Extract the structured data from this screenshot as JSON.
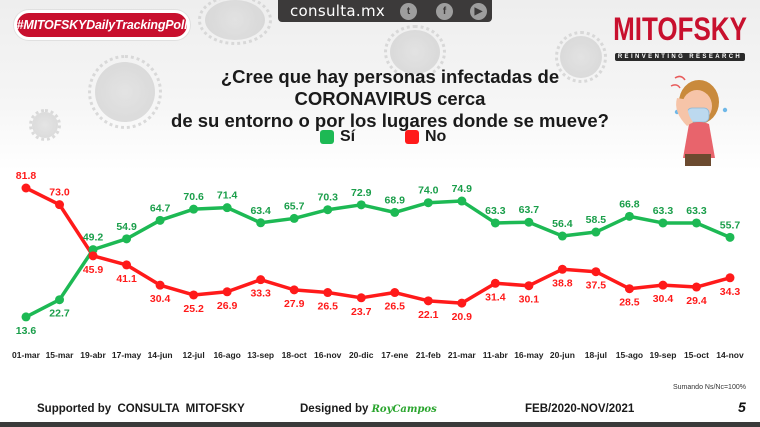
{
  "header": {
    "hashtag": "#MITOFSKYDailyTrackingPoll",
    "site_url": "consulta.mx",
    "social_icons": [
      "twitter-icon",
      "facebook-icon",
      "youtube-icon"
    ],
    "brand": "MITOFSKY",
    "brand_tagline": "REINVENTING RESEARCH"
  },
  "question": {
    "line1": "¿Cree que hay personas infectadas de CORONAVIRUS cerca",
    "line2": "de su entorno o por los lugares donde se mueve?"
  },
  "colors": {
    "si": "#1db954",
    "no": "#ff1a1a",
    "brand_red": "#c8102e"
  },
  "chart_data": {
    "type": "line",
    "title": "¿Cree que hay personas infectadas de CORONAVIRUS cerca de su entorno o por los lugares donde se mueve?",
    "xlabel": "",
    "ylabel": "",
    "grid": false,
    "legend_position": "top-center",
    "categories": [
      "01-mar",
      "15-mar",
      "19-abr",
      "17-may",
      "14-jun",
      "12-jul",
      "16-ago",
      "13-sep",
      "18-oct",
      "16-nov",
      "20-dic",
      "17-ene",
      "21-feb",
      "21-mar",
      "11-abr",
      "16-may",
      "20-jun",
      "18-jul",
      "15-ago",
      "19-sep",
      "15-oct",
      "14-nov"
    ],
    "series": [
      {
        "name": "Sí",
        "color": "#1db954",
        "values": [
          13.6,
          22.7,
          49.2,
          54.9,
          64.7,
          70.6,
          71.4,
          63.4,
          65.7,
          70.3,
          72.9,
          68.9,
          74.0,
          74.9,
          63.3,
          63.7,
          56.4,
          58.5,
          66.8,
          63.3,
          63.3,
          55.7
        ]
      },
      {
        "name": "No",
        "color": "#ff1a1a",
        "values": [
          81.8,
          73.0,
          45.9,
          41.1,
          30.4,
          25.2,
          26.9,
          33.3,
          27.9,
          26.5,
          23.7,
          26.5,
          22.1,
          20.9,
          31.4,
          30.1,
          38.8,
          37.5,
          28.5,
          30.4,
          29.4,
          34.3
        ]
      }
    ],
    "ylim": [
      0,
      100
    ]
  },
  "legend": {
    "si_label": "Sí",
    "no_label": "No"
  },
  "footer": {
    "supported_by": "Supported by  CONSULTA  MITOFSKY",
    "designed_by": "Designed by",
    "designer_signature": "RoyCampos",
    "period": "FEB/2020-NOV/2021",
    "note": "Sumando Ns/Nc=100%",
    "page_number": "5"
  }
}
